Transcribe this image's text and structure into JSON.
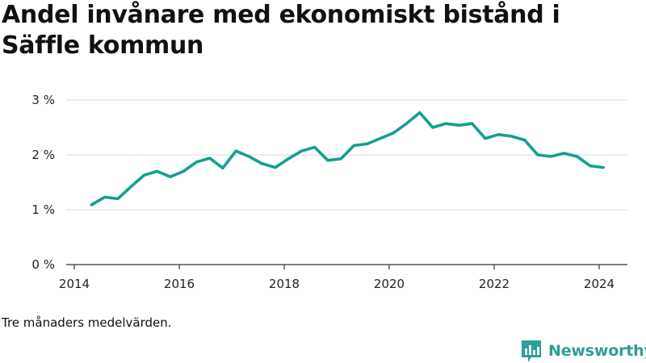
{
  "title": "Andel invånare med ekonomiskt bistånd i Säffle kommun",
  "note": "Tre månaders medelvärden.",
  "brand": {
    "name": "Newsworthy",
    "icon": "newsworthy-logo-icon",
    "color": "#2c9f96"
  },
  "colors": {
    "line": "#12a091",
    "grid": "#d9d9d9",
    "axis": "#333333"
  },
  "chart_data": {
    "type": "line",
    "title": "Andel invånare med ekonomiskt bistånd i Säffle kommun",
    "xlabel": "",
    "ylabel": "",
    "xlim": [
      2014,
      2024.6
    ],
    "ylim": [
      0,
      3
    ],
    "grid": true,
    "x_ticks": [
      2014,
      2016,
      2018,
      2020,
      2022,
      2024
    ],
    "x_tick_labels": [
      "2014",
      "2016",
      "2018",
      "2020",
      "2022",
      "2024"
    ],
    "y_ticks": [
      0,
      1,
      2,
      3
    ],
    "y_tick_labels": [
      "0 %",
      "1 %",
      "2 %",
      "3 %"
    ],
    "series": [
      {
        "x": [
          2014.33,
          2014.58,
          2014.83,
          2015.08,
          2015.33,
          2015.58,
          2015.83,
          2016.08,
          2016.33,
          2016.58,
          2016.83,
          2017.08,
          2017.33,
          2017.58,
          2017.83,
          2018.08,
          2018.33,
          2018.58,
          2018.83,
          2019.08,
          2019.33,
          2019.58,
          2019.83,
          2020.08,
          2020.33,
          2020.58,
          2020.83,
          2021.08,
          2021.33,
          2021.58,
          2021.83,
          2022.08,
          2022.33,
          2022.58,
          2022.83,
          2023.08,
          2023.33,
          2023.58,
          2023.83,
          2024.08
        ],
        "values": [
          1.09,
          1.23,
          1.2,
          1.42,
          1.63,
          1.7,
          1.6,
          1.7,
          1.87,
          1.94,
          1.76,
          2.07,
          1.97,
          1.84,
          1.77,
          1.93,
          2.07,
          2.14,
          1.9,
          1.93,
          2.17,
          2.2,
          2.3,
          2.4,
          2.57,
          2.77,
          2.5,
          2.57,
          2.54,
          2.57,
          2.3,
          2.37,
          2.34,
          2.27,
          2.0,
          1.97,
          2.03,
          1.97,
          1.8,
          1.77
        ]
      }
    ]
  }
}
